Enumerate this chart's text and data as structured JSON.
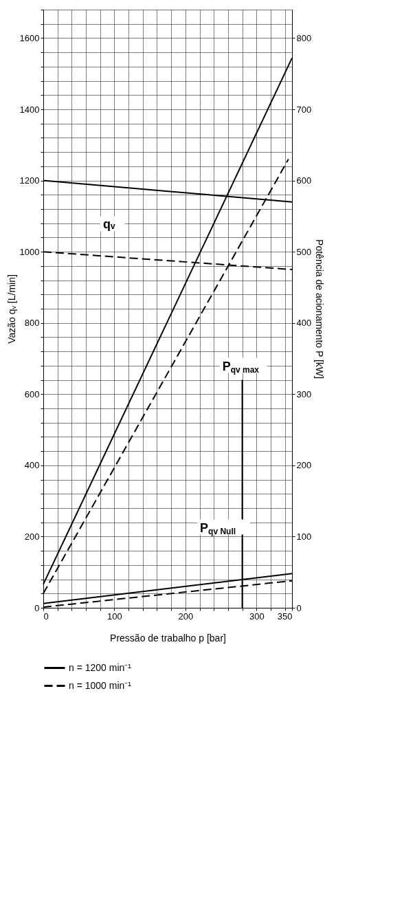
{
  "chart_data": {
    "type": "line",
    "xlabel": "Pressão de trabalho p [bar]",
    "ylabel": "Vazão qᵥ [L/min]",
    "y2label": "Potência de acionamento P [kW]",
    "xlim": [
      0,
      350
    ],
    "ylim": [
      0,
      1680
    ],
    "y2lim": [
      0,
      840
    ],
    "xticks": [
      0,
      {
        "value": 20,
        "label": null
      },
      {
        "value": 40,
        "label": null
      },
      {
        "value": 60,
        "label": null
      },
      {
        "value": 80,
        "label": null
      },
      100,
      {
        "value": 120,
        "label": null
      },
      {
        "value": 140,
        "label": null
      },
      {
        "value": 160,
        "label": null
      },
      {
        "value": 180,
        "label": null
      },
      200,
      {
        "value": 220,
        "label": null
      },
      {
        "value": 240,
        "label": null
      },
      {
        "value": 260,
        "label": null
      },
      {
        "value": 280,
        "label": null
      },
      300,
      {
        "value": 320,
        "label": null
      },
      {
        "value": 340,
        "label": null
      },
      350
    ],
    "yticks": [
      0,
      {
        "value": 40,
        "label": null
      },
      {
        "value": 80,
        "label": null
      },
      {
        "value": 120,
        "label": null
      },
      {
        "value": 160,
        "label": null
      },
      200,
      {
        "value": 240,
        "label": null
      },
      {
        "value": 280,
        "label": null
      },
      {
        "value": 320,
        "label": null
      },
      {
        "value": 360,
        "label": null
      },
      400,
      {
        "value": 440,
        "label": null
      },
      {
        "value": 480,
        "label": null
      },
      {
        "value": 520,
        "label": null
      },
      {
        "value": 560,
        "label": null
      },
      600,
      {
        "value": 640,
        "label": null
      },
      {
        "value": 680,
        "label": null
      },
      {
        "value": 720,
        "label": null
      },
      {
        "value": 760,
        "label": null
      },
      800,
      {
        "value": 840,
        "label": null
      },
      {
        "value": 880,
        "label": null
      },
      {
        "value": 920,
        "label": null
      },
      {
        "value": 960,
        "label": null
      },
      1000,
      {
        "value": 1040,
        "label": null
      },
      {
        "value": 1080,
        "label": null
      },
      {
        "value": 1120,
        "label": null
      },
      {
        "value": 1160,
        "label": null
      },
      1200,
      {
        "value": 1240,
        "label": null
      },
      {
        "value": 1280,
        "label": null
      },
      {
        "value": 1320,
        "label": null
      },
      {
        "value": 1360,
        "label": null
      },
      1400,
      {
        "value": 1440,
        "label": null
      },
      {
        "value": 1480,
        "label": null
      },
      {
        "value": 1520,
        "label": null
      },
      {
        "value": 1560,
        "label": null
      },
      1600,
      {
        "value": 1640,
        "label": null
      },
      {
        "value": 1680,
        "label": null
      }
    ],
    "y2ticks": [
      0,
      100,
      200,
      300,
      400,
      500,
      600,
      700,
      800
    ],
    "grid": true,
    "legend": "bottom left",
    "marker": "none",
    "series": [
      {
        "name": "n = 1200 min⁻¹",
        "color": "#000000",
        "line_style": "solid",
        "x": [
          0,
          350
        ],
        "values": [
          1200,
          1140
        ]
      },
      {
        "name": "n = 1000 min⁻¹",
        "color": "#000000",
        "line_style": "dashed",
        "x": [
          0,
          350
        ],
        "values": [
          1000,
          950
        ]
      },
      {
        "color": "#000000",
        "line_style": "solid",
        "axis": "y2",
        "x": [
          0,
          350
        ],
        "values": [
          33,
          772
        ]
      },
      {
        "color": "#000000",
        "line_style": "dashed",
        "axis": "y2",
        "x": [
          0,
          345
        ],
        "values": [
          20,
          630
        ]
      },
      {
        "color": "#000000",
        "line_style": "solid",
        "axis": "y2",
        "x": [
          0,
          350
        ],
        "values": [
          6,
          48
        ]
      },
      {
        "color": "#000000",
        "line_style": "dashed",
        "axis": "y2",
        "x": [
          0,
          350
        ],
        "values": [
          1,
          38
        ]
      },
      {
        "color": "#000000",
        "line_style": "solid",
        "x": [
          280,
          280
        ],
        "values": [
          0,
          640
        ]
      }
    ],
    "annotations": [
      "qᵥ",
      "P$_{qv max}$",
      "P$_{qv Null}$"
    ]
  }
}
